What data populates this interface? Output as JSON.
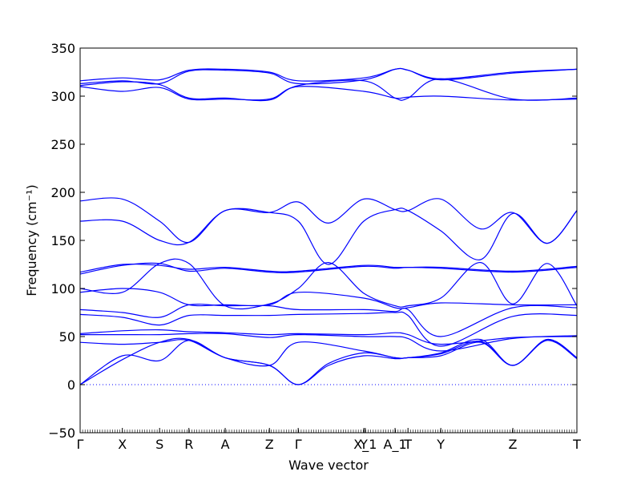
{
  "chart_data": {
    "type": "line",
    "title": "",
    "xlabel": "Wave vector",
    "ylabel": "Frequency (cm⁻¹)",
    "ylim": [
      -50,
      350
    ],
    "yticks": [
      -50,
      0,
      50,
      100,
      150,
      200,
      250,
      300,
      350
    ],
    "grid": false,
    "line_color": "#0000ff",
    "zero_line_color": "#0000ff",
    "xticks": [
      {
        "label": "Γ",
        "pos": 0.0
      },
      {
        "label": "X",
        "pos": 0.085
      },
      {
        "label": "S",
        "pos": 0.16
      },
      {
        "label": "R",
        "pos": 0.219
      },
      {
        "label": "A",
        "pos": 0.292
      },
      {
        "label": "Z",
        "pos": 0.381
      },
      {
        "label": "Γ",
        "pos": 0.439
      },
      {
        "label": "Y",
        "pos": 0.571
      },
      {
        "label": "X_1",
        "pos": 0.574
      },
      {
        "label": "A_1",
        "pos": 0.634
      },
      {
        "label": "T",
        "pos": 0.66
      },
      {
        "label": "Y",
        "pos": 0.726
      },
      {
        "label": "Z",
        "pos": 0.871
      },
      {
        "label": "T",
        "pos": 1.0
      }
    ],
    "series": [
      {
        "values": [
          [
            0,
            316
          ],
          [
            0.085,
            319
          ],
          [
            0.16,
            317
          ],
          [
            0.219,
            327
          ],
          [
            0.292,
            328
          ],
          [
            0.381,
            325
          ],
          [
            0.439,
            316
          ],
          [
            0.571,
            319
          ],
          [
            0.634,
            328
          ],
          [
            0.66,
            327
          ],
          [
            0.726,
            318
          ],
          [
            0.871,
            325
          ],
          [
            1.0,
            328
          ]
        ]
      },
      {
        "values": [
          [
            0,
            313
          ],
          [
            0.085,
            316
          ],
          [
            0.16,
            313
          ],
          [
            0.219,
            326
          ],
          [
            0.292,
            327
          ],
          [
            0.381,
            324
          ],
          [
            0.439,
            313
          ],
          [
            0.571,
            317
          ],
          [
            0.634,
            328
          ],
          [
            0.66,
            327
          ],
          [
            0.726,
            317
          ],
          [
            0.871,
            324
          ],
          [
            1.0,
            328
          ]
        ]
      },
      {
        "values": [
          [
            0,
            311
          ],
          [
            0.085,
            315
          ],
          [
            0.16,
            312
          ],
          [
            0.219,
            298
          ],
          [
            0.292,
            298
          ],
          [
            0.381,
            296
          ],
          [
            0.439,
            311
          ],
          [
            0.571,
            316
          ],
          [
            0.634,
            298
          ],
          [
            0.66,
            298
          ],
          [
            0.726,
            318
          ],
          [
            0.871,
            297
          ],
          [
            1.0,
            298
          ]
        ]
      },
      {
        "values": [
          [
            0,
            310
          ],
          [
            0.085,
            305
          ],
          [
            0.16,
            309
          ],
          [
            0.219,
            297
          ],
          [
            0.292,
            297
          ],
          [
            0.381,
            297
          ],
          [
            0.439,
            310
          ],
          [
            0.571,
            305
          ],
          [
            0.634,
            298
          ],
          [
            0.66,
            299
          ],
          [
            0.726,
            300
          ],
          [
            0.871,
            296
          ],
          [
            1.0,
            297
          ]
        ]
      },
      {
        "values": [
          [
            0,
            191
          ],
          [
            0.085,
            193
          ],
          [
            0.16,
            170
          ],
          [
            0.219,
            148
          ],
          [
            0.292,
            181
          ],
          [
            0.381,
            179
          ],
          [
            0.439,
            190
          ],
          [
            0.5,
            168
          ],
          [
            0.571,
            193
          ],
          [
            0.634,
            182
          ],
          [
            0.66,
            181
          ],
          [
            0.726,
            193
          ],
          [
            0.806,
            162
          ],
          [
            0.871,
            179
          ],
          [
            0.94,
            147
          ],
          [
            1.0,
            181
          ]
        ]
      },
      {
        "values": [
          [
            0,
            170
          ],
          [
            0.085,
            170
          ],
          [
            0.16,
            150
          ],
          [
            0.219,
            148
          ],
          [
            0.292,
            181
          ],
          [
            0.381,
            179
          ],
          [
            0.439,
            170
          ],
          [
            0.5,
            125
          ],
          [
            0.571,
            170
          ],
          [
            0.634,
            182
          ],
          [
            0.66,
            181
          ],
          [
            0.726,
            160
          ],
          [
            0.806,
            130
          ],
          [
            0.871,
            178
          ],
          [
            0.94,
            147
          ],
          [
            1.0,
            181
          ]
        ]
      },
      {
        "values": [
          [
            0,
            117
          ],
          [
            0.085,
            125
          ],
          [
            0.16,
            124
          ],
          [
            0.219,
            120
          ],
          [
            0.292,
            122
          ],
          [
            0.381,
            118
          ],
          [
            0.439,
            118
          ],
          [
            0.571,
            124
          ],
          [
            0.634,
            122
          ],
          [
            0.66,
            122
          ],
          [
            0.726,
            122
          ],
          [
            0.871,
            118
          ],
          [
            1.0,
            123
          ]
        ]
      },
      {
        "values": [
          [
            0,
            115
          ],
          [
            0.085,
            124
          ],
          [
            0.16,
            126
          ],
          [
            0.219,
            118
          ],
          [
            0.292,
            121
          ],
          [
            0.381,
            117
          ],
          [
            0.439,
            117
          ],
          [
            0.571,
            123
          ],
          [
            0.634,
            121
          ],
          [
            0.66,
            122
          ],
          [
            0.726,
            121
          ],
          [
            0.871,
            117
          ],
          [
            1.0,
            122
          ]
        ]
      },
      {
        "values": [
          [
            0,
            100
          ],
          [
            0.085,
            96
          ],
          [
            0.16,
            126
          ],
          [
            0.219,
            126
          ],
          [
            0.292,
            82
          ],
          [
            0.381,
            84
          ],
          [
            0.439,
            100
          ],
          [
            0.5,
            127
          ],
          [
            0.571,
            95
          ],
          [
            0.634,
            82
          ],
          [
            0.66,
            82
          ],
          [
            0.726,
            90
          ],
          [
            0.806,
            127
          ],
          [
            0.871,
            84
          ],
          [
            0.94,
            126
          ],
          [
            1.0,
            82
          ]
        ]
      },
      {
        "values": [
          [
            0,
            96
          ],
          [
            0.085,
            100
          ],
          [
            0.16,
            96
          ],
          [
            0.219,
            83
          ],
          [
            0.292,
            83
          ],
          [
            0.381,
            83
          ],
          [
            0.439,
            96
          ],
          [
            0.571,
            90
          ],
          [
            0.634,
            80
          ],
          [
            0.66,
            80
          ],
          [
            0.726,
            85
          ],
          [
            0.871,
            83
          ],
          [
            1.0,
            83
          ]
        ]
      },
      {
        "values": [
          [
            0,
            78
          ],
          [
            0.085,
            75
          ],
          [
            0.16,
            70
          ],
          [
            0.219,
            83
          ],
          [
            0.292,
            82
          ],
          [
            0.381,
            82
          ],
          [
            0.439,
            78
          ],
          [
            0.571,
            78
          ],
          [
            0.634,
            76
          ],
          [
            0.66,
            78
          ],
          [
            0.726,
            50
          ],
          [
            0.871,
            80
          ],
          [
            1.0,
            80
          ]
        ]
      },
      {
        "values": [
          [
            0,
            73
          ],
          [
            0.085,
            70
          ],
          [
            0.16,
            62
          ],
          [
            0.219,
            72
          ],
          [
            0.292,
            72
          ],
          [
            0.381,
            72
          ],
          [
            0.439,
            73
          ],
          [
            0.571,
            74
          ],
          [
            0.634,
            75
          ],
          [
            0.66,
            72
          ],
          [
            0.726,
            40
          ],
          [
            0.871,
            71
          ],
          [
            1.0,
            72
          ]
        ]
      },
      {
        "values": [
          [
            0,
            53
          ],
          [
            0.085,
            56
          ],
          [
            0.16,
            57
          ],
          [
            0.219,
            55
          ],
          [
            0.292,
            54
          ],
          [
            0.381,
            52
          ],
          [
            0.439,
            53
          ],
          [
            0.571,
            52
          ],
          [
            0.634,
            54
          ],
          [
            0.66,
            52
          ],
          [
            0.726,
            42
          ],
          [
            0.871,
            49
          ],
          [
            1.0,
            50
          ]
        ]
      },
      {
        "values": [
          [
            0,
            52
          ],
          [
            0.085,
            52
          ],
          [
            0.16,
            52
          ],
          [
            0.219,
            53
          ],
          [
            0.292,
            53
          ],
          [
            0.381,
            49
          ],
          [
            0.439,
            52
          ],
          [
            0.571,
            50
          ],
          [
            0.634,
            50
          ],
          [
            0.66,
            48
          ],
          [
            0.726,
            35
          ],
          [
            0.871,
            48
          ],
          [
            1.0,
            51
          ]
        ]
      },
      {
        "values": [
          [
            0,
            44
          ],
          [
            0.085,
            42
          ],
          [
            0.16,
            44
          ],
          [
            0.219,
            46
          ],
          [
            0.292,
            28
          ],
          [
            0.381,
            20
          ],
          [
            0.439,
            44
          ],
          [
            0.571,
            35
          ],
          [
            0.634,
            28
          ],
          [
            0.66,
            28
          ],
          [
            0.726,
            33
          ],
          [
            0.806,
            47
          ],
          [
            0.871,
            20
          ],
          [
            0.94,
            47
          ],
          [
            1.0,
            28
          ]
        ]
      },
      {
        "values": [
          [
            0,
            0
          ],
          [
            0.085,
            30
          ],
          [
            0.16,
            25
          ],
          [
            0.219,
            46
          ],
          [
            0.292,
            28
          ],
          [
            0.381,
            20
          ],
          [
            0.439,
            0
          ],
          [
            0.5,
            22
          ],
          [
            0.571,
            33
          ],
          [
            0.634,
            28
          ],
          [
            0.66,
            28
          ],
          [
            0.726,
            32
          ],
          [
            0.806,
            45
          ],
          [
            0.871,
            20
          ],
          [
            0.94,
            47
          ],
          [
            1.0,
            28
          ]
        ]
      },
      {
        "values": [
          [
            0,
            0
          ],
          [
            0.085,
            26
          ],
          [
            0.16,
            44
          ],
          [
            0.219,
            47
          ],
          [
            0.292,
            28
          ],
          [
            0.381,
            20
          ],
          [
            0.439,
            0
          ],
          [
            0.5,
            20
          ],
          [
            0.571,
            30
          ],
          [
            0.634,
            27
          ],
          [
            0.66,
            28
          ],
          [
            0.726,
            30
          ],
          [
            0.806,
            44
          ],
          [
            0.871,
            20
          ],
          [
            0.94,
            46
          ],
          [
            1.0,
            27
          ]
        ]
      }
    ]
  }
}
